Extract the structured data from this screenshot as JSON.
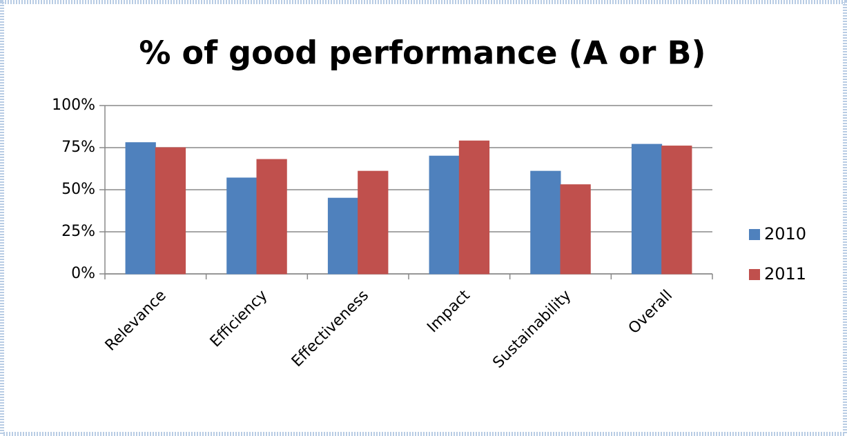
{
  "chart_data": {
    "type": "bar",
    "title": "% of good performance (A or B)",
    "categories": [
      "Relevance",
      "Efficiency",
      "Effectiveness",
      "Impact",
      "Sustainability",
      "Overall"
    ],
    "series": [
      {
        "name": "2010",
        "color": "#4f81bd",
        "values": [
          78,
          57,
          45,
          70,
          61,
          77
        ]
      },
      {
        "name": "2011",
        "color": "#c0504d",
        "values": [
          75,
          68,
          61,
          79,
          53,
          76
        ]
      }
    ],
    "ylim": [
      0,
      100
    ],
    "yticks": [
      {
        "value": 0,
        "label": "0%"
      },
      {
        "value": 25,
        "label": "25%"
      },
      {
        "value": 50,
        "label": "50%"
      },
      {
        "value": 75,
        "label": "75%"
      },
      {
        "value": 100,
        "label": "100%"
      }
    ],
    "grid": true,
    "legend": "right"
  }
}
